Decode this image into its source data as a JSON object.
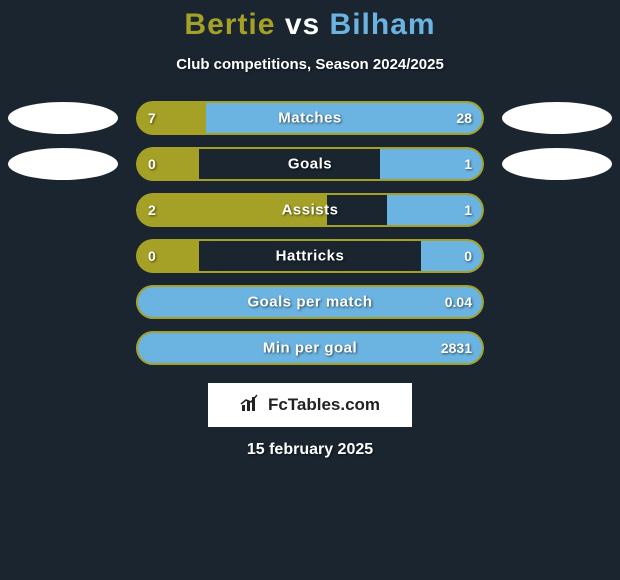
{
  "title": {
    "player1": "Bertie",
    "vs": "vs",
    "player2": "Bilham",
    "color1": "#a5a026",
    "color_vs": "#ffffff",
    "color2": "#6bb3e0"
  },
  "subtitle": "Club competitions, Season 2024/2025",
  "colors": {
    "player1": "#a5a026",
    "player2": "#6bb3e0",
    "background": "#1a2530",
    "bar_bg": "#1a2530"
  },
  "stats": [
    {
      "label": "Matches",
      "left_value": "7",
      "right_value": "28",
      "left_pct": 20,
      "right_pct": 80,
      "show_clubs": true
    },
    {
      "label": "Goals",
      "left_value": "0",
      "right_value": "1",
      "left_pct": 18,
      "right_pct": 30,
      "show_clubs": true
    },
    {
      "label": "Assists",
      "left_value": "2",
      "right_value": "1",
      "left_pct": 55,
      "right_pct": 28,
      "show_clubs": false
    },
    {
      "label": "Hattricks",
      "left_value": "0",
      "right_value": "0",
      "left_pct": 18,
      "right_pct": 18,
      "show_clubs": false
    },
    {
      "label": "Goals per match",
      "left_value": "",
      "right_value": "0.04",
      "left_pct": 0,
      "right_pct": 100,
      "show_clubs": false
    },
    {
      "label": "Min per goal",
      "left_value": "",
      "right_value": "2831",
      "left_pct": 0,
      "right_pct": 100,
      "show_clubs": false
    }
  ],
  "logo": {
    "text": "FcTables.com"
  },
  "date": "15 february 2025"
}
